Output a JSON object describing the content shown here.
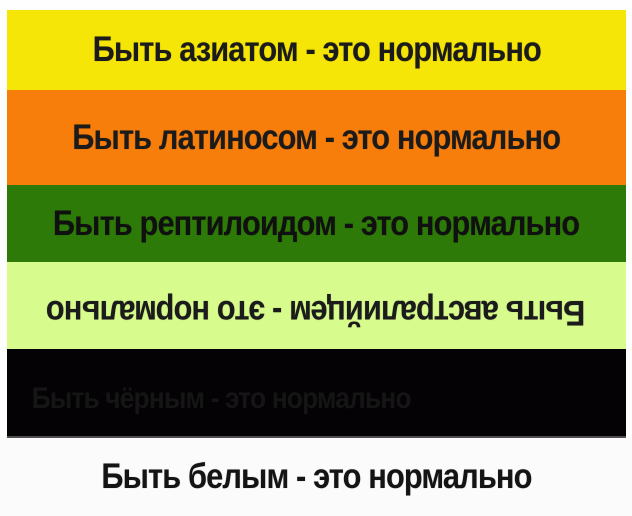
{
  "meme": {
    "frame_color": "#FEFEFE",
    "text_color": "#1B1B1B",
    "bands": [
      {
        "name": "asian",
        "bg": "#F6E607",
        "label": "Быть азиатом - это нормально",
        "rotated": false,
        "hidden": false
      },
      {
        "name": "latino",
        "bg": "#F87E0C",
        "label": "Быть латиносом - это нормально",
        "rotated": false,
        "hidden": false
      },
      {
        "name": "reptiloid",
        "bg": "#2E7A08",
        "label": "Быть рептилоидом - это нормально",
        "rotated": false,
        "hidden": false
      },
      {
        "name": "australian",
        "bg": "#D7FB8C",
        "label": "Быть австралийцем - это нормально",
        "rotated": true,
        "hidden": false
      },
      {
        "name": "black",
        "bg": "#040204",
        "label": "Быть чёрным - это нормально",
        "rotated": false,
        "hidden": true
      },
      {
        "name": "white",
        "bg": "#FBFBFB",
        "label": "Быть белым - это нормально",
        "rotated": false,
        "hidden": false
      }
    ]
  }
}
